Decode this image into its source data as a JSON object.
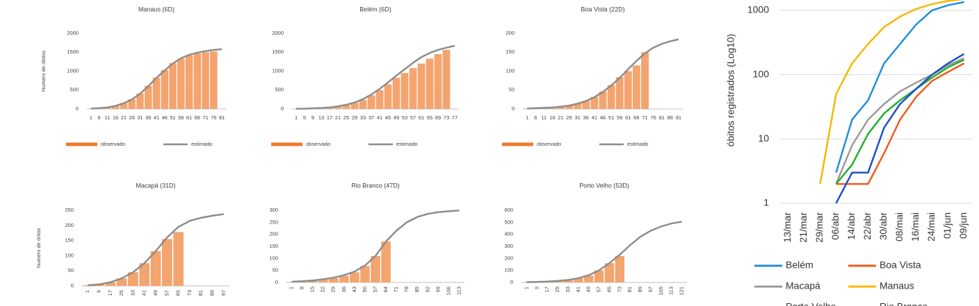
{
  "chart_data": [
    {
      "type": "combo",
      "title": "Manaus (6D)",
      "ylabel": "Numero de óbitos",
      "legend": "bottom",
      "categories": [
        "1",
        "6",
        "11",
        "16",
        "21",
        "26",
        "31",
        "36",
        "41",
        "46",
        "51",
        "56",
        "61",
        "66",
        "71",
        "76",
        "81"
      ],
      "ylim": [
        0,
        2000
      ],
      "yticks": [
        0,
        500,
        1000,
        1500,
        2000
      ],
      "series": [
        {
          "name": "observado",
          "color": "#f4a46e",
          "values": [
            10,
            20,
            40,
            85,
            160,
            260,
            410,
            610,
            830,
            1030,
            1210,
            1330,
            1420,
            1470,
            1500,
            1520,
            null
          ]
        },
        {
          "name": "estimado",
          "color": "#8c8c8c",
          "values": [
            10,
            20,
            40,
            80,
            150,
            250,
            400,
            600,
            820,
            1020,
            1200,
            1340,
            1430,
            1490,
            1530,
            1560,
            1580
          ]
        }
      ]
    },
    {
      "type": "combo",
      "title": "Belém (6D)",
      "legend": "bottom",
      "categories": [
        "1",
        "5",
        "9",
        "13",
        "17",
        "21",
        "25",
        "29",
        "33",
        "37",
        "41",
        "45",
        "49",
        "53",
        "57",
        "61",
        "65",
        "69",
        "73",
        "77"
      ],
      "ylim": [
        0,
        2000
      ],
      "yticks": [
        0,
        500,
        1000,
        1500,
        2000
      ],
      "series": [
        {
          "name": "observado",
          "color": "#f4a46e",
          "values": [
            3,
            6,
            12,
            20,
            35,
            60,
            100,
            160,
            240,
            360,
            500,
            650,
            820,
            950,
            1080,
            1200,
            1330,
            1450,
            1560,
            null
          ]
        },
        {
          "name": "estimado",
          "color": "#8c8c8c",
          "values": [
            5,
            8,
            15,
            25,
            40,
            70,
            110,
            170,
            260,
            380,
            530,
            700,
            880,
            1050,
            1220,
            1370,
            1480,
            1560,
            1620,
            1670
          ]
        }
      ]
    },
    {
      "type": "combo",
      "title": "Boa Vista (22D)",
      "legend": "bottom",
      "categories": [
        "1",
        "6",
        "11",
        "16",
        "21",
        "26",
        "31",
        "36",
        "41",
        "46",
        "51",
        "56",
        "61",
        "66",
        "71",
        "76",
        "81",
        "86",
        "91"
      ],
      "ylim": [
        0,
        200
      ],
      "yticks": [
        0,
        50,
        100,
        150,
        200
      ],
      "series": [
        {
          "name": "observado",
          "color": "#f4a46e",
          "values": [
            1,
            2,
            3,
            4,
            6,
            9,
            14,
            21,
            32,
            46,
            63,
            84,
            100,
            115,
            150,
            null,
            null,
            null,
            null
          ]
        },
        {
          "name": "estimado",
          "color": "#8c8c8c",
          "values": [
            1,
            2,
            3,
            4,
            6,
            9,
            14,
            21,
            31,
            45,
            62,
            82,
            105,
            127,
            147,
            162,
            172,
            179,
            184
          ]
        }
      ]
    },
    {
      "type": "combo",
      "title": "Macapá (31D)",
      "ylabel": "Numero de óritos",
      "xtick_rotation": 90,
      "categories": [
        "1",
        "9",
        "17",
        "25",
        "33",
        "41",
        "49",
        "57",
        "65",
        "73",
        "81",
        "89",
        "97"
      ],
      "ylim": [
        0,
        250
      ],
      "yticks": [
        0,
        50,
        100,
        150,
        200,
        250
      ],
      "series": [
        {
          "name": "observado",
          "color": "#f4a46e",
          "values": [
            2,
            5,
            12,
            25,
            45,
            75,
            115,
            155,
            178,
            null,
            null,
            null,
            null
          ]
        },
        {
          "name": "estimado",
          "color": "#8c8c8c",
          "values": [
            2,
            5,
            12,
            25,
            45,
            75,
            115,
            160,
            195,
            215,
            225,
            232,
            237
          ]
        }
      ]
    },
    {
      "type": "combo",
      "title": "Rio Branco (47D)",
      "xtick_rotation": 90,
      "categories": [
        "1",
        "8",
        "15",
        "22",
        "29",
        "36",
        "43",
        "50",
        "57",
        "64",
        "71",
        "78",
        "85",
        "92",
        "99",
        "106",
        "113"
      ],
      "ylim": [
        0,
        300
      ],
      "yticks": [
        0,
        50,
        100,
        150,
        200,
        250,
        300
      ],
      "series": [
        {
          "name": "observado",
          "color": "#f4a46e",
          "values": [
            2,
            4,
            7,
            12,
            18,
            28,
            42,
            68,
            110,
            170,
            null,
            null,
            null,
            null,
            null,
            null,
            null
          ]
        },
        {
          "name": "estimado",
          "color": "#8c8c8c",
          "values": [
            3,
            5,
            8,
            13,
            20,
            30,
            45,
            70,
            110,
            170,
            215,
            250,
            272,
            285,
            292,
            296,
            299
          ]
        }
      ]
    },
    {
      "type": "combo",
      "title": "Porto Velho (53D)",
      "xtick_rotation": 90,
      "categories": [
        "1",
        "9",
        "17",
        "25",
        "33",
        "41",
        "49",
        "57",
        "65",
        "73",
        "81",
        "89",
        "97",
        "105",
        "113",
        "121"
      ],
      "ylim": [
        0,
        600
      ],
      "yticks": [
        0,
        100,
        200,
        300,
        400,
        500,
        600
      ],
      "series": [
        {
          "name": "observado",
          "color": "#f4a46e",
          "values": [
            2,
            4,
            7,
            12,
            20,
            35,
            58,
            100,
            160,
            220,
            null,
            null,
            null,
            null,
            null,
            null
          ]
        },
        {
          "name": "estimado",
          "color": "#8c8c8c",
          "values": [
            2,
            4,
            7,
            12,
            20,
            35,
            60,
            100,
            160,
            230,
            310,
            380,
            430,
            465,
            490,
            505
          ]
        }
      ]
    },
    {
      "type": "line",
      "ylabel": "óbitos registrados (Log10)",
      "log_scale": true,
      "grid": true,
      "categories": [
        "13/mar",
        "21/mar",
        "29/mar",
        "06/abr",
        "14/abr",
        "22/abr",
        "30/abr",
        "08/mai",
        "16/mai",
        "24/mai",
        "01/jun",
        "09/jun"
      ],
      "ylim": [
        0.84,
        1600
      ],
      "yticks": [
        1,
        10,
        100,
        1000
      ],
      "series": [
        {
          "name": "Belém",
          "color": "#1f8fdc",
          "values": [
            null,
            null,
            null,
            3,
            20,
            40,
            150,
            300,
            600,
            1000,
            1200,
            1350
          ]
        },
        {
          "name": "Boa Vista",
          "color": "#f05a1a",
          "values": [
            null,
            null,
            null,
            2,
            2,
            2,
            6,
            20,
            45,
            80,
            110,
            150
          ]
        },
        {
          "name": "Macapá",
          "color": "#9a9a9a",
          "values": [
            null,
            null,
            null,
            2,
            8,
            20,
            35,
            55,
            75,
            100,
            140,
            180
          ]
        },
        {
          "name": "Manaus",
          "color": "#f5b800",
          "values": [
            null,
            null,
            2,
            50,
            150,
            300,
            550,
            800,
            1050,
            1250,
            1400,
            1500
          ]
        },
        {
          "name": "Porto Velho",
          "color": "#22b02a",
          "values": [
            null,
            null,
            null,
            2,
            4,
            12,
            25,
            40,
            60,
            90,
            130,
            170
          ]
        },
        {
          "name": "Rio Branco",
          "color": "#1f4fc8",
          "values": [
            null,
            null,
            null,
            1,
            3,
            3,
            15,
            35,
            60,
            100,
            150,
            210
          ]
        }
      ]
    }
  ]
}
